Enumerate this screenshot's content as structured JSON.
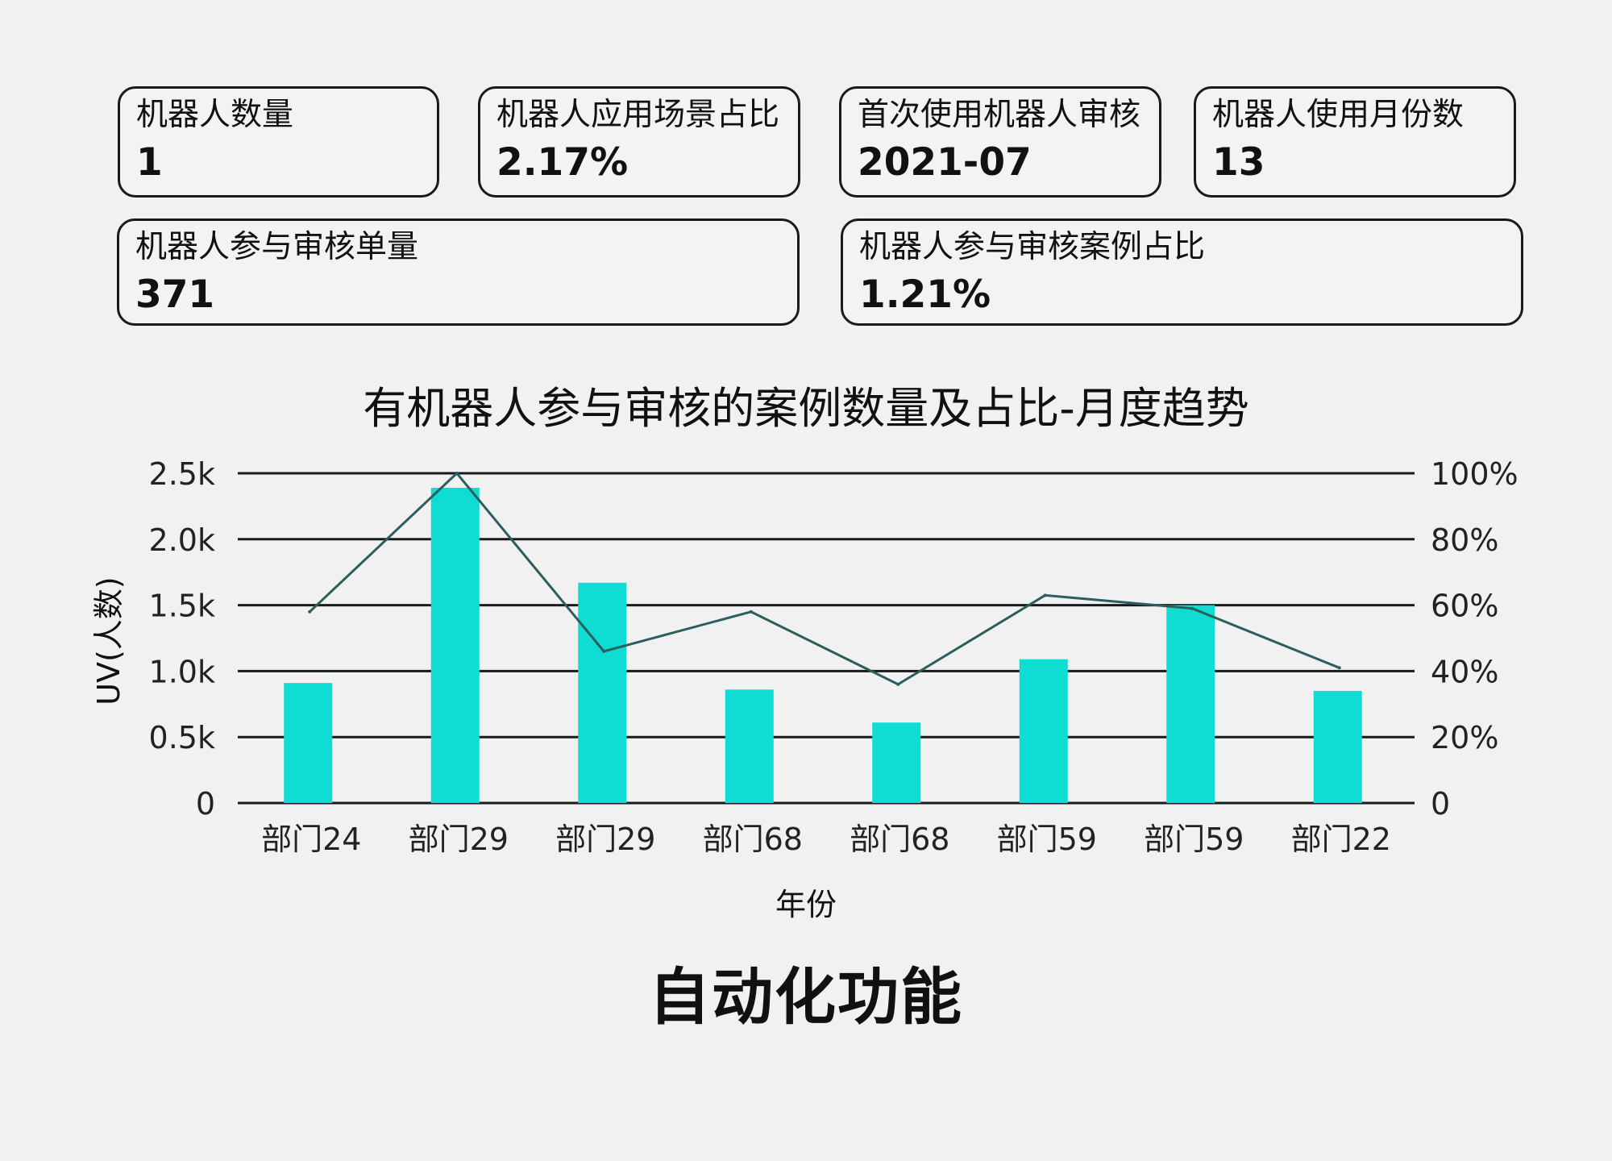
{
  "kpis": [
    {
      "label": "机器人数量",
      "value": "1"
    },
    {
      "label": "机器人应用场景占比",
      "value": "2.17%"
    },
    {
      "label": "首次使用机器人审核",
      "value": "2021-07"
    },
    {
      "label": "机器人使用月份数",
      "value": "13"
    },
    {
      "label": "机器人参与审核单量",
      "value": "371"
    },
    {
      "label": "机器人参与审核案例占比",
      "value": "1.21%"
    }
  ],
  "footer_title": "自动化功能",
  "colors": {
    "bar": "#0fdcd2",
    "line": "#2b5e5c",
    "grid": "#1a1a1a"
  },
  "chart_data": {
    "type": "bar",
    "title": "有机器人参与审核的案例数量及占比-月度趋势",
    "xlabel": "年份",
    "ylabel": "UV(人数)",
    "categories": [
      "部门24",
      "部门29",
      "部门29",
      "部门68",
      "部门68",
      "部门59",
      "部门59",
      "部门22"
    ],
    "y_ticks": [
      "0",
      "0.5k",
      "1.0k",
      "1.5k",
      "2.0k",
      "2.5k"
    ],
    "y2_ticks": [
      "0",
      "20%",
      "40%",
      "60%",
      "80%",
      "100%"
    ],
    "ylim": [
      0,
      2500
    ],
    "y2lim": [
      0,
      100
    ],
    "grid": true,
    "series": [
      {
        "type": "bar",
        "axis": "left",
        "values": [
          910,
          2390,
          1670,
          860,
          610,
          1090,
          1500,
          850
        ]
      },
      {
        "type": "line",
        "axis": "right",
        "values": [
          58,
          100,
          46,
          58,
          36,
          63,
          59,
          41
        ]
      }
    ]
  }
}
